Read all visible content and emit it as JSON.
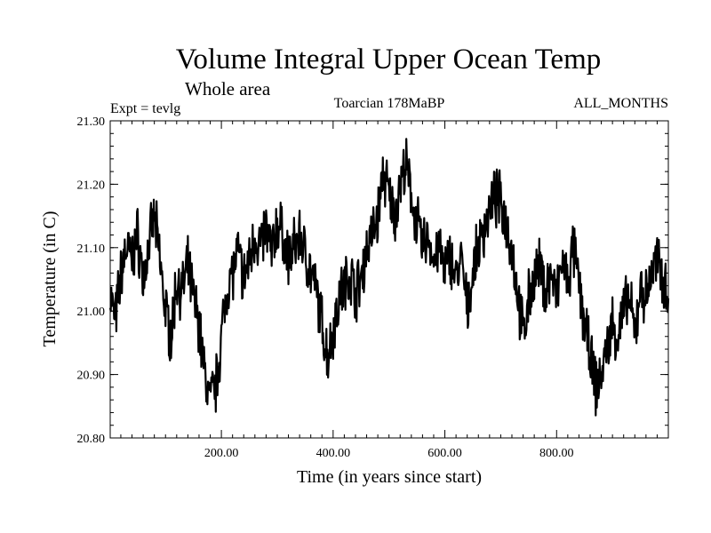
{
  "chart_data": {
    "type": "line",
    "title": "Volume Integral Upper Ocean Temp",
    "subtitle": "Whole area",
    "experiment": "Expt = tevlg",
    "period": "Toarcian 178MaBP",
    "months": "ALL_MONTHS",
    "xlabel": "Time (in years since start)",
    "ylabel": "Temperature (in C)",
    "xlim": [
      1,
      1000
    ],
    "ylim": [
      20.8,
      21.3
    ],
    "xticks": [
      200,
      400,
      600,
      800
    ],
    "xtick_labels": [
      "200.00",
      "400.00",
      "600.00",
      "800.00"
    ],
    "yticks": [
      20.8,
      20.9,
      21.0,
      21.1,
      21.2,
      21.3
    ],
    "ytick_labels": [
      "20.80",
      "20.90",
      "21.00",
      "21.10",
      "21.20",
      "21.30"
    ],
    "grid": false,
    "line_color": "#000000",
    "series": [
      {
        "name": "Volume Integral Upper Ocean Temp",
        "x": [
          1,
          10,
          20,
          30,
          40,
          50,
          60,
          70,
          80,
          90,
          100,
          110,
          120,
          130,
          140,
          150,
          160,
          170,
          180,
          190,
          200,
          210,
          220,
          230,
          240,
          250,
          260,
          270,
          280,
          290,
          300,
          310,
          320,
          330,
          340,
          350,
          360,
          370,
          380,
          390,
          400,
          410,
          420,
          430,
          440,
          450,
          460,
          470,
          480,
          490,
          500,
          510,
          520,
          530,
          540,
          550,
          560,
          570,
          580,
          590,
          600,
          610,
          620,
          630,
          640,
          650,
          660,
          670,
          680,
          690,
          700,
          710,
          720,
          730,
          740,
          750,
          760,
          770,
          780,
          790,
          800,
          810,
          820,
          830,
          840,
          850,
          860,
          870,
          880,
          890,
          900,
          910,
          920,
          930,
          940,
          950,
          960,
          970,
          980,
          990,
          1000
        ],
        "values": [
          21.03,
          20.98,
          21.06,
          21.1,
          21.08,
          21.12,
          21.05,
          21.1,
          21.15,
          21.08,
          21.0,
          20.96,
          21.05,
          21.03,
          21.07,
          21.02,
          20.98,
          20.9,
          20.86,
          20.88,
          20.96,
          21.04,
          21.06,
          21.09,
          21.05,
          21.08,
          21.12,
          21.1,
          21.13,
          21.09,
          21.14,
          21.12,
          21.08,
          21.1,
          21.12,
          21.09,
          21.06,
          21.03,
          20.98,
          20.93,
          20.97,
          21.02,
          21.04,
          21.06,
          21.03,
          21.05,
          21.1,
          21.12,
          21.15,
          21.22,
          21.18,
          21.15,
          21.2,
          21.23,
          21.18,
          21.14,
          21.1,
          21.12,
          21.08,
          21.1,
          21.06,
          21.09,
          21.05,
          21.08,
          21.0,
          21.06,
          21.1,
          21.13,
          21.16,
          21.18,
          21.17,
          21.14,
          21.1,
          21.03,
          20.96,
          21.02,
          21.05,
          21.07,
          21.03,
          21.06,
          21.02,
          21.08,
          21.04,
          21.1,
          21.04,
          20.98,
          20.93,
          20.88,
          20.9,
          20.94,
          20.98,
          20.96,
          21.0,
          21.02,
          20.96,
          21.04,
          21.02,
          21.06,
          21.08,
          21.05,
          21.03
        ]
      }
    ]
  }
}
